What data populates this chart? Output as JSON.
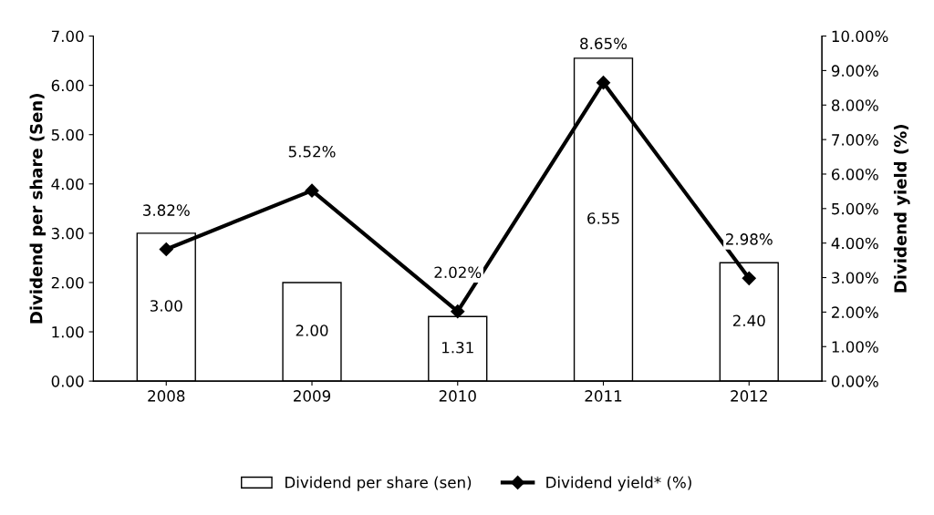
{
  "chart_data": {
    "type": "bar",
    "categories": [
      "2008",
      "2009",
      "2010",
      "2011",
      "2012"
    ],
    "ylabel": "Dividend per share (Sen)",
    "y2label": "Dividend yield (%)",
    "ylim": [
      0,
      7
    ],
    "yticks": [
      {
        "value": 0,
        "label": "0.00"
      },
      {
        "value": 1,
        "label": "1.00"
      },
      {
        "value": 2,
        "label": "2.00"
      },
      {
        "value": 3,
        "label": "3.00"
      },
      {
        "value": 4,
        "label": "4.00"
      },
      {
        "value": 5,
        "label": "5.00"
      },
      {
        "value": 6,
        "label": "6.00"
      },
      {
        "value": 7,
        "label": "7.00"
      }
    ],
    "y2lim": [
      0,
      10
    ],
    "y2ticks": [
      {
        "value": 0,
        "label": "0.00%"
      },
      {
        "value": 1,
        "label": "1.00%"
      },
      {
        "value": 2,
        "label": "2.00%"
      },
      {
        "value": 3,
        "label": "3.00%"
      },
      {
        "value": 4,
        "label": "4.00%"
      },
      {
        "value": 5,
        "label": "5.00%"
      },
      {
        "value": 6,
        "label": "6.00%"
      },
      {
        "value": 7,
        "label": "7.00%"
      },
      {
        "value": 8,
        "label": "8.00%"
      },
      {
        "value": 9,
        "label": "9.00%"
      },
      {
        "value": 10,
        "label": "10.00%"
      }
    ],
    "series": [
      {
        "name": "Dividend per share (sen)",
        "color": "#ffffff",
        "values": [
          3.0,
          2.0,
          1.31,
          6.55,
          2.4
        ],
        "value_labels": [
          "3.00",
          "2.00",
          "1.31",
          "6.55",
          "2.40"
        ]
      },
      {
        "name": "Dividend yield* (%)",
        "type": "line",
        "axis": "y2",
        "color": "#000000",
        "marker": "diamond",
        "values": [
          3.82,
          5.52,
          2.02,
          8.65,
          2.98
        ],
        "value_labels": [
          "3.82%",
          "5.52%",
          "2.02%",
          "8.65%",
          "2.98%"
        ]
      }
    ],
    "legend": "bottom",
    "grid": false
  }
}
